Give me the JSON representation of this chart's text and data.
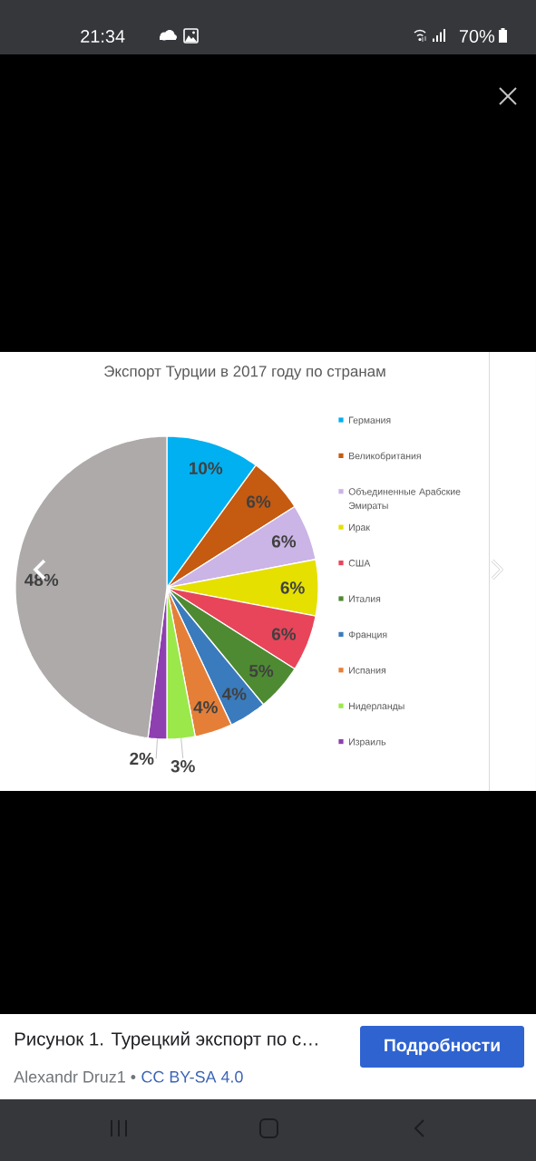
{
  "chart_data": {
    "type": "pie",
    "title": "Экспорт Турции в 2017 году по странам",
    "categories": [
      "Германия",
      "Великобритания",
      "Объединенные Арабские Эмираты",
      "Ирак",
      "США",
      "Италия",
      "Франция",
      "Испания",
      "Нидерланды",
      "Израиль",
      null
    ],
    "values": [
      10,
      6,
      6,
      6,
      6,
      5,
      4,
      4,
      3,
      2,
      48
    ],
    "value_labels": [
      "10%",
      "6%",
      "6%",
      "6%",
      "6%",
      "5%",
      "4%",
      "4%",
      "3%",
      "2%",
      "48%"
    ],
    "colors": [
      "#00b0f0",
      "#c55a11",
      "#cbb4e6",
      "#e5e000",
      "#e8455a",
      "#4e8a32",
      "#3a7bbd",
      "#e57f38",
      "#9be84b",
      "#8e3fb0",
      "#aeaaaa"
    ],
    "legend": "right",
    "annotations": [
      "21:34",
      "70%",
      "Рисунок 1. Турецкий экспорт по с…",
      "Alexandr Druz1 •",
      "CC BY-SA 4.0",
      "Подробности"
    ]
  }
}
